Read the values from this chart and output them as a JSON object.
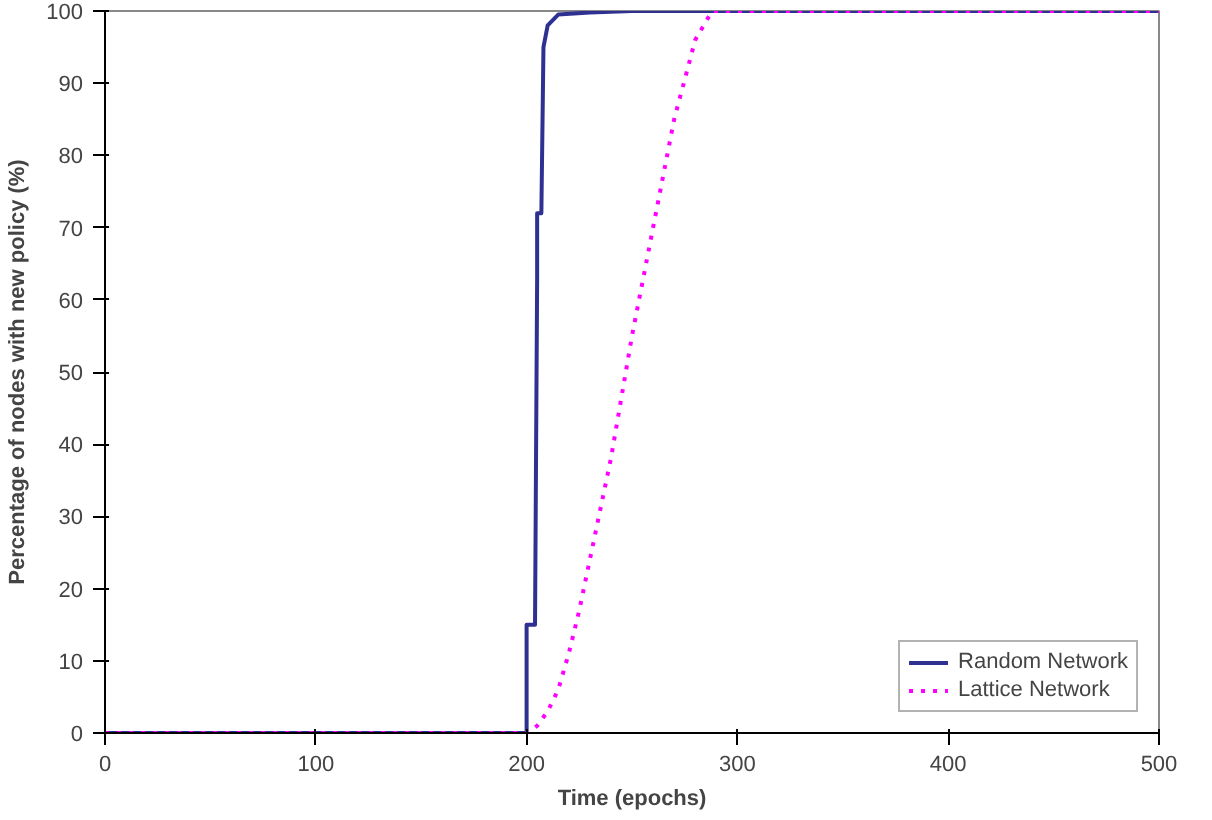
{
  "chart_data": {
    "type": "line",
    "xlabel": "Time (epochs)",
    "ylabel": "Percentage of nodes with new policy (%)",
    "x": [
      0,
      200,
      200,
      204,
      205,
      205,
      207,
      208,
      210,
      215,
      230,
      250,
      500
    ],
    "series": [
      {
        "name": "Random Network",
        "color": "#2e3192",
        "line_style": "solid",
        "values": [
          0,
          0,
          15,
          15,
          63,
          72,
          72,
          95,
          98,
          99.5,
          99.8,
          100,
          100
        ]
      },
      {
        "name": "Lattice Network",
        "color": "#ff00ff",
        "line_style": "dotted",
        "x": [
          0,
          200,
          205,
          210,
          215,
          220,
          225,
          230,
          240,
          250,
          260,
          270,
          280,
          288,
          500
        ],
        "values": [
          0,
          0,
          1,
          3,
          6,
          11,
          17,
          24,
          38,
          55,
          70,
          85,
          96,
          100,
          100
        ]
      }
    ],
    "xlim": [
      0,
      500
    ],
    "ylim": [
      0,
      100
    ],
    "xticks": [
      0,
      100,
      200,
      300,
      400,
      500
    ],
    "yticks": [
      0,
      10,
      20,
      30,
      40,
      50,
      60,
      70,
      80,
      90,
      100
    ],
    "grid": false,
    "legend": "bottom right",
    "marker": "none"
  }
}
